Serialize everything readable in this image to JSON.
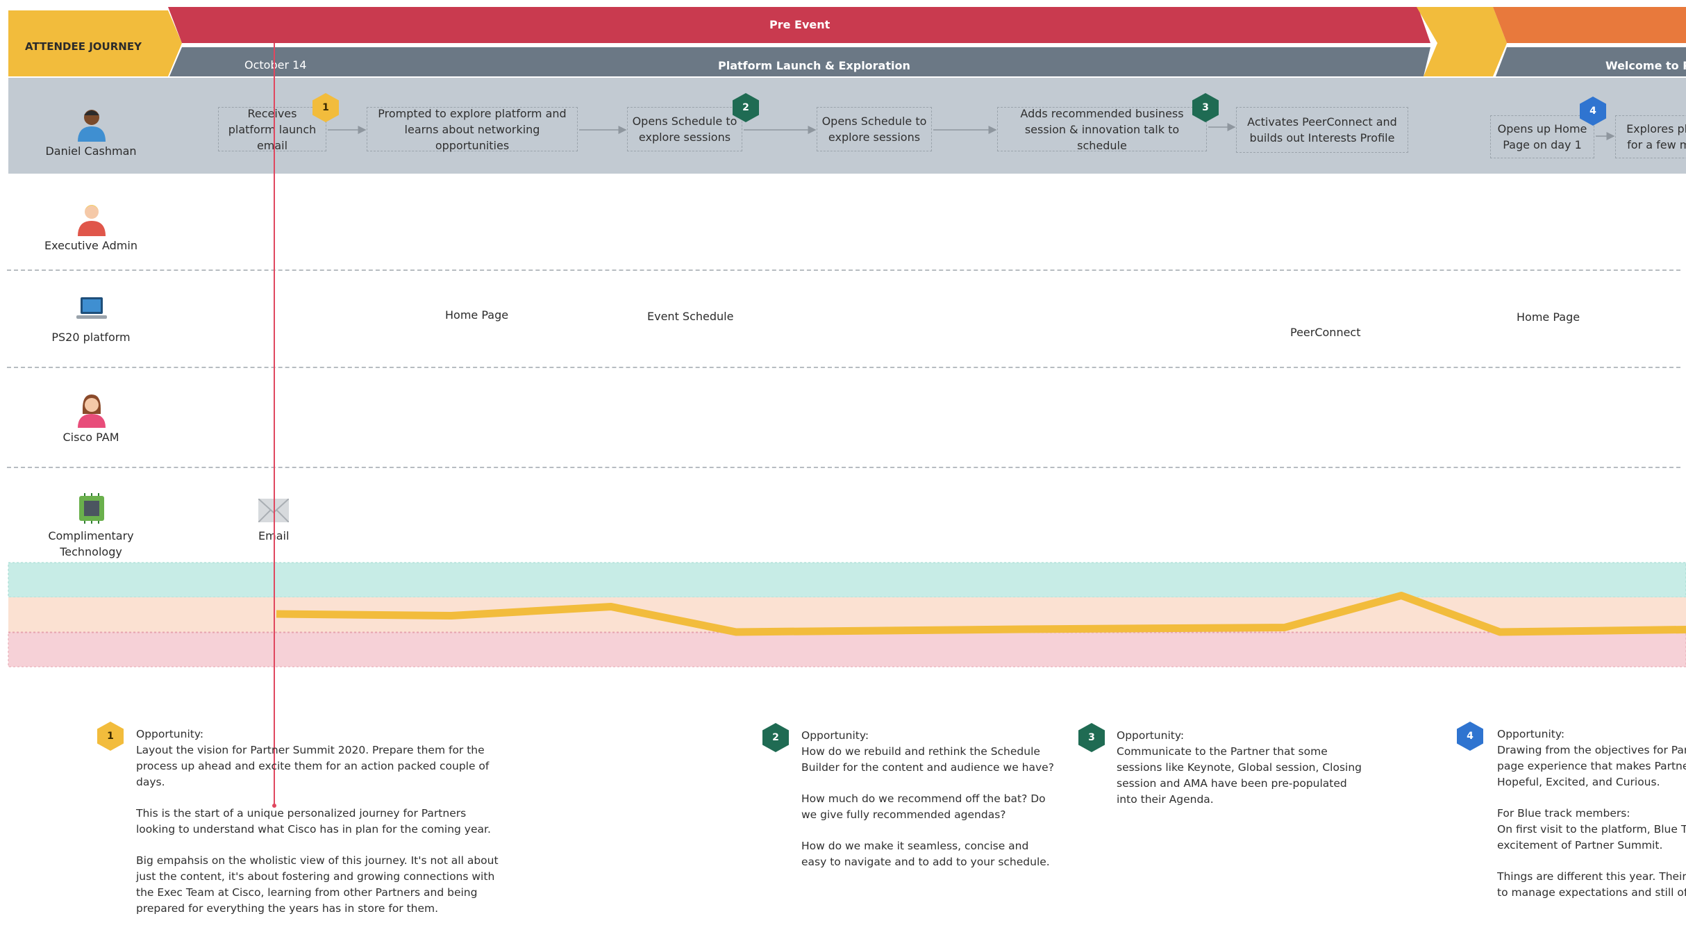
{
  "header": {
    "journey_label": "ATTENDEE JOURNEY",
    "phase_label": "Pre Event",
    "date_label": "October 14",
    "stage_label": "Platform Launch & Exploration",
    "next_stage_label": "Welcome to Pa"
  },
  "actors": [
    {
      "name": "Daniel Cashman",
      "icon": "person-icon"
    },
    {
      "name": "Executive Admin",
      "icon": "person-icon"
    },
    {
      "name": "PS20 platform",
      "icon": "laptop-icon"
    },
    {
      "name": "Cisco PAM",
      "icon": "person-icon"
    },
    {
      "name": "Complimentary Technology",
      "icon": "chip-icon"
    }
  ],
  "steps": [
    {
      "text": "Receives platform launch email",
      "badge": "1"
    },
    {
      "text": "Prompted to explore platform and learns about networking opportunities"
    },
    {
      "text": "Opens Schedule to explore sessions",
      "badge": "2"
    },
    {
      "text": "Opens Schedule to explore sessions"
    },
    {
      "text": "Adds recommended business session & innovation talk to schedule",
      "badge": "3"
    },
    {
      "text": "Activates PeerConnect and builds out Interests Profile"
    },
    {
      "text": "Opens up Home Page on day 1",
      "badge": "4"
    },
    {
      "text": "Explores pla for a few mi"
    }
  ],
  "platform_touchpoints": [
    "Home Page",
    "Event Schedule",
    "PeerConnect",
    "Home Page"
  ],
  "tech_touchpoints": [
    {
      "name": "Email",
      "icon": "envelope-icon"
    }
  ],
  "emotion_curve": [
    0.52,
    0.47,
    0.73,
    0.0,
    0.08,
    0.13,
    1.05,
    0.0,
    0.07
  ],
  "opportunities": [
    {
      "badge": "1",
      "title": "Opportunity:",
      "paragraphs": [
        [
          "Layout the vision for Partner Summit 2020. Prepare them for the",
          "process up ahead and excite them for an action packed couple of",
          "days."
        ],
        [
          "This is the start of a unique personalized journey for Partners",
          "looking to understand what Cisco has in plan for the coming year."
        ],
        [
          "Big empahsis on the wholistic view of this journey. It's not all about",
          "just the content, it's about fostering and growing connections with",
          "the Exec Team at Cisco, learning from other Partners and being",
          "prepared for everything the years has in store for them."
        ]
      ]
    },
    {
      "badge": "2",
      "title": "Opportunity:",
      "paragraphs": [
        [
          "How do we rebuild and rethink the Schedule",
          "Builder for the content and audience we have?"
        ],
        [
          "How much do we recommend off the bat? Do",
          "we give fully recommended agendas?"
        ],
        [
          "How do we make it seamless, concise and",
          "easy to navigate and to add to your schedule."
        ]
      ]
    },
    {
      "badge": "3",
      "title": "Opportunity:",
      "paragraphs": [
        [
          "Communicate to the Partner that some",
          "sessions like Keynote, Global session, Closing",
          "session and AMA have been pre-populated",
          "into their Agenda."
        ]
      ]
    },
    {
      "badge": "4",
      "title": "Opportunity:",
      "paragraphs": [
        [
          "Drawing from the objectives for Part",
          "page experience that makes Partner",
          "Hopeful, Excited, and Curious."
        ],
        [
          "For Blue track members:",
          "On first visit to the platform, Blue Tr",
          "excitement of Partner Summit."
        ],
        [
          "Things are different this year. Their a",
          "to manage expectations and still off"
        ]
      ]
    }
  ],
  "colors": {
    "journey_bar": "#f2bc3c",
    "pre_event_bar": "#c93a4f",
    "stage_bar": "#6b7885",
    "next_phase_bar": "#e8793c",
    "lane_band": "#c2cad2",
    "emotion_positive": "#c7ece6",
    "emotion_neutral": "#fbe1d2",
    "emotion_negative": "#f6d1d7",
    "emotion_line": "#f2bc3c",
    "timeline_marker": "#e0475f",
    "badge_yellow": "#f2bc3c",
    "badge_green": "#1f6b53",
    "badge_blue": "#2f74d0"
  }
}
